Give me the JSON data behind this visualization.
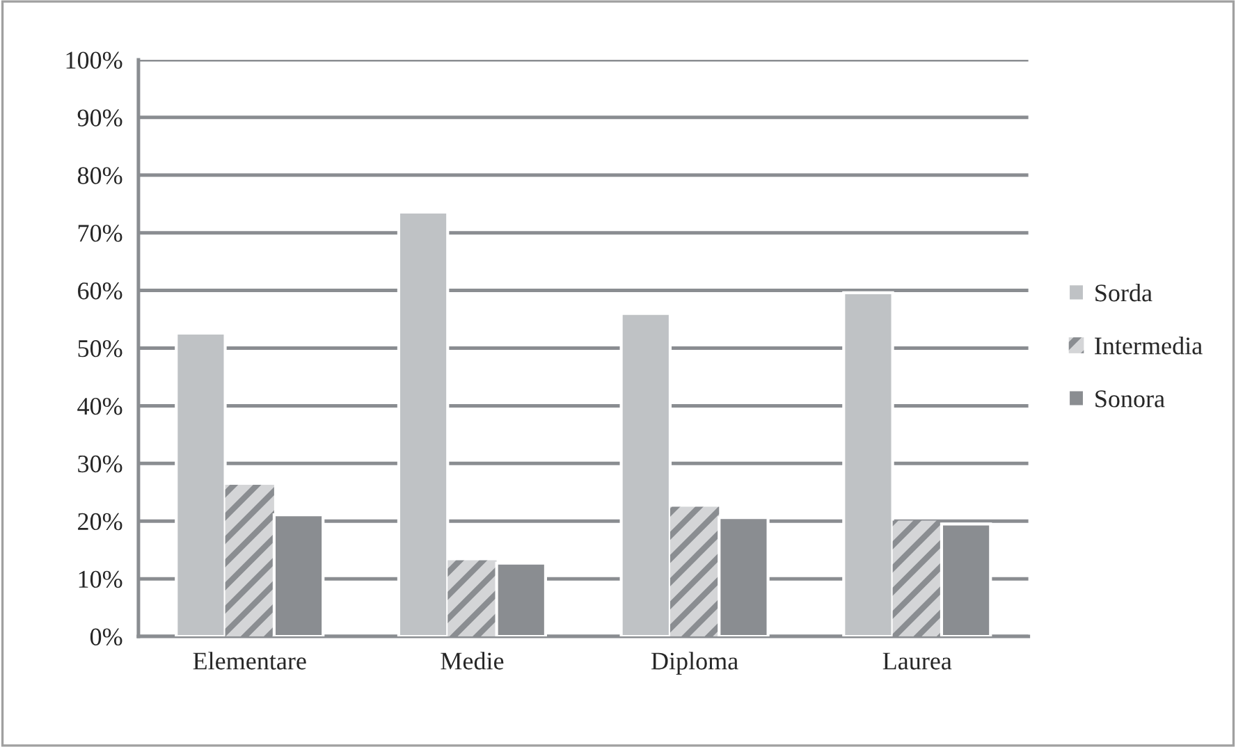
{
  "chart_data": {
    "type": "bar",
    "categories": [
      "Elementare",
      "Medie",
      "Diploma",
      "Laurea"
    ],
    "series": [
      {
        "name": "Sorda",
        "color": "#bfc2c5",
        "values": [
          52.6,
          73.6,
          56.0,
          59.6
        ]
      },
      {
        "name": "Intermedia",
        "color": "#d4d5d7",
        "values": [
          26.3,
          13.2,
          22.5,
          20.1
        ]
      },
      {
        "name": "Sonora",
        "color": "#8a8d91",
        "values": [
          21.1,
          12.7,
          20.6,
          19.5
        ]
      }
    ],
    "ylim": [
      0,
      100
    ],
    "yticks": [
      {
        "value": 0,
        "label": "0%"
      },
      {
        "value": 10,
        "label": "10%"
      },
      {
        "value": 20,
        "label": "20%"
      },
      {
        "value": 30,
        "label": "30%"
      },
      {
        "value": 40,
        "label": "40%"
      },
      {
        "value": 50,
        "label": "50%"
      },
      {
        "value": 60,
        "label": "60%"
      },
      {
        "value": 70,
        "label": "70%"
      },
      {
        "value": 80,
        "label": "80%"
      },
      {
        "value": 90,
        "label": "90%"
      },
      {
        "value": 100,
        "label": "100%"
      }
    ],
    "grid": "y",
    "legend": "right"
  }
}
